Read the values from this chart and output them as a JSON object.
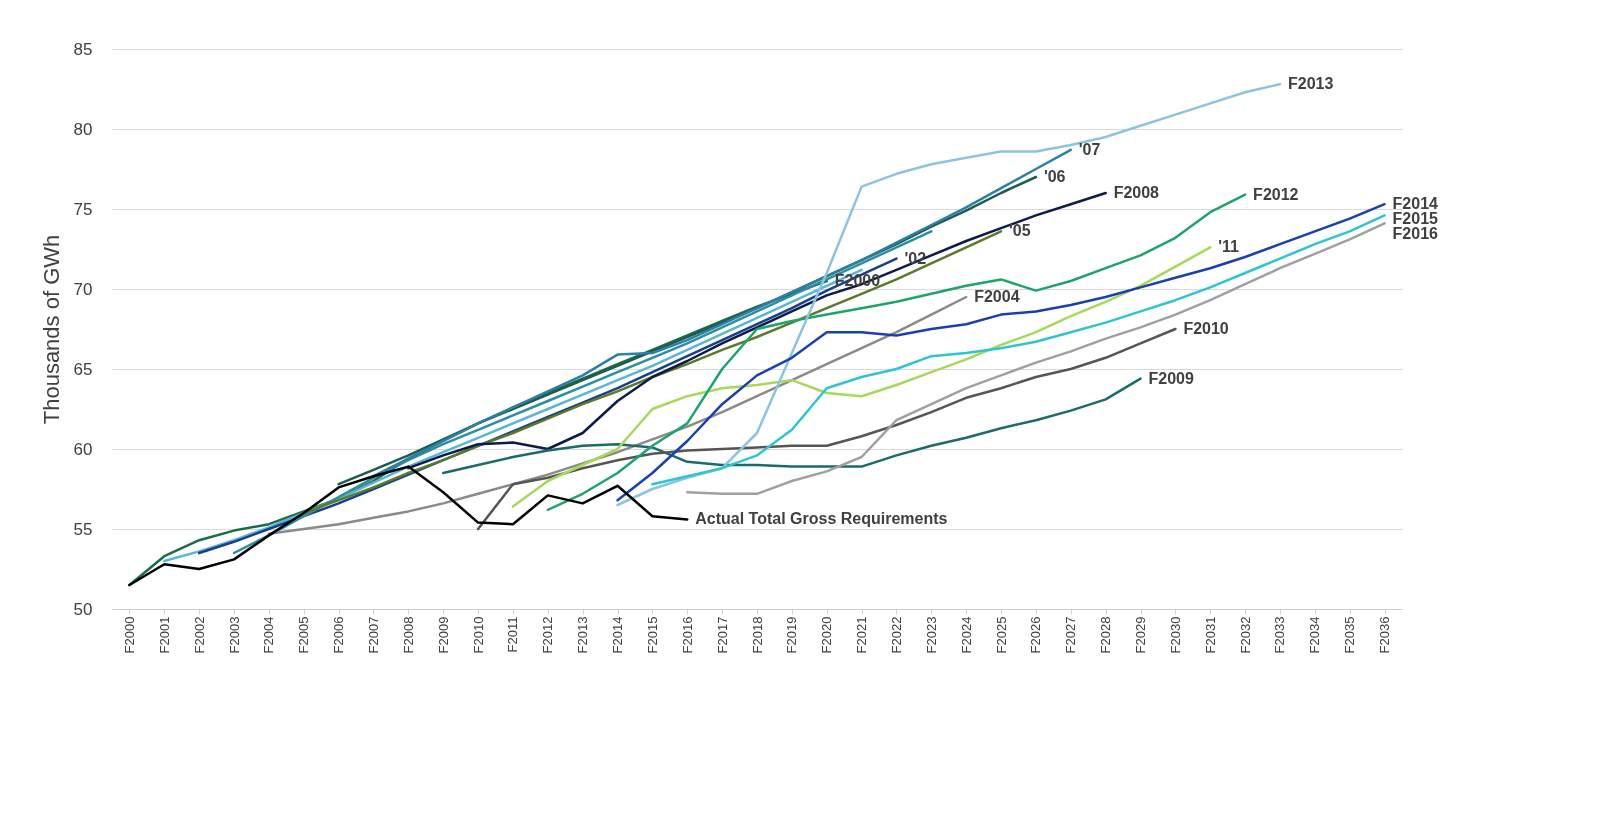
{
  "chart_data": {
    "type": "line",
    "ylabel": "Thousands of GWh",
    "categories": [
      "F2000",
      "F2001",
      "F2002",
      "F2003",
      "F2004",
      "F2005",
      "F2006",
      "F2007",
      "F2008",
      "F2009",
      "F2010",
      "F2011",
      "F2012",
      "F2013",
      "F2014",
      "F2015",
      "F2016",
      "F2017",
      "F2018",
      "F2019",
      "F2020",
      "F2021",
      "F2022",
      "F2023",
      "F2024",
      "F2025",
      "F2026",
      "F2027",
      "F2028",
      "F2029",
      "F2030",
      "F2031",
      "F2032",
      "F2033",
      "F2034",
      "F2035",
      "F2036"
    ],
    "ylim": [
      50,
      85
    ],
    "yticks": [
      50,
      55,
      60,
      65,
      70,
      75,
      80,
      85
    ],
    "grid": "y",
    "legend": false,
    "marker": "none",
    "line_style": "solid",
    "series": [
      {
        "name": "F2000",
        "color": "#1e6b4a",
        "values": [
          51.5,
          53.3,
          54.3,
          54.9,
          55.3,
          56.1,
          56.9,
          58.0,
          59.4,
          60.5,
          61.6,
          62.6,
          63.5,
          64.4,
          65.3,
          66.2,
          67.1,
          68.0,
          68.9,
          69.7,
          70.5,
          null,
          null,
          null,
          null,
          null,
          null,
          null,
          null,
          null,
          null,
          null,
          null,
          null,
          null,
          null,
          null
        ]
      },
      {
        "color": "#5bb5d5",
        "values": [
          null,
          53.0,
          53.6,
          54.3,
          55.1,
          56.0,
          56.9,
          57.9,
          58.9,
          59.8,
          60.7,
          61.6,
          62.5,
          63.4,
          64.3,
          65.2,
          66.2,
          67.2,
          68.2,
          69.2,
          70.2,
          71.2,
          null,
          null,
          null,
          null,
          null,
          null,
          null,
          null,
          null,
          null,
          null,
          null,
          null,
          null,
          null
        ]
      },
      {
        "name": "'02",
        "color": "#1a3f8a",
        "values": [
          null,
          null,
          53.5,
          54.2,
          55.0,
          55.8,
          56.6,
          57.5,
          58.4,
          59.3,
          60.2,
          61.1,
          62.0,
          62.9,
          63.8,
          64.8,
          65.8,
          66.8,
          67.8,
          68.8,
          69.9,
          70.9,
          71.9,
          null,
          null,
          null,
          null,
          null,
          null,
          null,
          null,
          null,
          null,
          null,
          null,
          null,
          null
        ]
      },
      {
        "color": "#2a8f9e",
        "values": [
          null,
          null,
          null,
          53.5,
          54.6,
          55.8,
          57.0,
          58.2,
          59.3,
          60.3,
          61.2,
          62.1,
          63.0,
          63.9,
          64.8,
          65.7,
          66.6,
          67.6,
          68.6,
          69.6,
          70.6,
          71.6,
          72.6,
          73.6,
          null,
          null,
          null,
          null,
          null,
          null,
          null,
          null,
          null,
          null,
          null,
          null,
          null
        ]
      },
      {
        "name": "F2004",
        "color": "#8a8a8a",
        "values": [
          null,
          null,
          null,
          null,
          54.7,
          55.0,
          55.3,
          55.7,
          56.1,
          56.6,
          57.2,
          57.8,
          58.4,
          59.1,
          59.8,
          60.6,
          61.4,
          62.3,
          63.3,
          64.3,
          65.3,
          66.3,
          67.3,
          68.4,
          69.5,
          null,
          null,
          null,
          null,
          null,
          null,
          null,
          null,
          null,
          null,
          null,
          null
        ]
      },
      {
        "name": "'05",
        "color": "#5a7a2a",
        "values": [
          null,
          null,
          null,
          null,
          null,
          56.0,
          56.8,
          57.6,
          58.5,
          59.3,
          60.2,
          61.0,
          61.9,
          62.8,
          63.6,
          64.5,
          65.3,
          66.2,
          67.0,
          67.9,
          68.8,
          69.7,
          70.6,
          71.6,
          72.6,
          73.6,
          null,
          null,
          null,
          null,
          null,
          null,
          null,
          null,
          null,
          null,
          null
        ]
      },
      {
        "name": "'06",
        "color": "#1f5c4a",
        "values": [
          null,
          null,
          null,
          null,
          null,
          null,
          57.8,
          58.7,
          59.6,
          60.6,
          61.6,
          62.5,
          63.4,
          64.3,
          65.2,
          66.1,
          67.0,
          67.9,
          68.8,
          69.8,
          70.8,
          71.8,
          72.8,
          73.9,
          74.9,
          76.0,
          77.0,
          null,
          null,
          null,
          null,
          null,
          null,
          null,
          null,
          null,
          null
        ]
      },
      {
        "name": "'07",
        "color": "#2e7fa8",
        "values": [
          null,
          null,
          null,
          null,
          null,
          null,
          null,
          58.3,
          59.4,
          60.5,
          61.6,
          62.6,
          63.6,
          64.6,
          65.9,
          66.0,
          66.8,
          67.8,
          68.8,
          69.8,
          70.8,
          71.8,
          72.9,
          74.0,
          75.1,
          76.3,
          77.5,
          78.7,
          null,
          null,
          null,
          null,
          null,
          null,
          null,
          null,
          null
        ]
      },
      {
        "name": "F2008",
        "color": "#0d1b4a",
        "values": [
          null,
          null,
          null,
          null,
          null,
          null,
          null,
          null,
          58.8,
          59.6,
          60.3,
          60.4,
          60.0,
          61.0,
          63.0,
          64.5,
          65.5,
          66.6,
          67.6,
          68.6,
          69.6,
          70.3,
          71.2,
          72.1,
          73.0,
          73.8,
          74.6,
          75.3,
          76.0,
          null,
          null,
          null,
          null,
          null,
          null,
          null,
          null
        ]
      },
      {
        "name": "F2009",
        "color": "#1b6b6b",
        "values": [
          null,
          null,
          null,
          null,
          null,
          null,
          null,
          null,
          null,
          58.5,
          59.0,
          59.5,
          59.9,
          60.2,
          60.3,
          60.1,
          59.2,
          59.0,
          59.0,
          58.9,
          58.9,
          58.9,
          59.6,
          60.2,
          60.7,
          61.3,
          61.8,
          62.4,
          63.1,
          64.4,
          null,
          null,
          null,
          null,
          null,
          null,
          null
        ]
      },
      {
        "name": "F2010",
        "color": "#555555",
        "values": [
          null,
          null,
          null,
          null,
          null,
          null,
          null,
          null,
          null,
          null,
          55.0,
          57.8,
          58.2,
          58.8,
          59.3,
          59.7,
          59.9,
          60.0,
          60.1,
          60.2,
          60.2,
          60.8,
          61.5,
          62.3,
          63.2,
          63.8,
          64.5,
          65.0,
          65.7,
          66.6,
          67.5,
          null,
          null,
          null,
          null,
          null,
          null
        ]
      },
      {
        "name": "'11",
        "color": "#a6d85a",
        "values": [
          null,
          null,
          null,
          null,
          null,
          null,
          null,
          null,
          null,
          null,
          null,
          56.4,
          58.0,
          59.0,
          60.0,
          62.5,
          63.3,
          63.8,
          64.0,
          64.3,
          63.5,
          63.3,
          64.0,
          64.8,
          65.6,
          66.5,
          67.3,
          68.3,
          69.2,
          70.2,
          71.4,
          72.6,
          null,
          null,
          null,
          null,
          null
        ]
      },
      {
        "name": "F2012",
        "color": "#1fa36b",
        "values": [
          null,
          null,
          null,
          null,
          null,
          null,
          null,
          null,
          null,
          null,
          null,
          null,
          56.2,
          57.2,
          58.5,
          60.2,
          61.6,
          65.0,
          67.5,
          68.0,
          68.4,
          68.8,
          69.2,
          69.7,
          70.2,
          70.6,
          69.9,
          70.5,
          71.3,
          72.1,
          73.2,
          74.8,
          75.9,
          null,
          null,
          null,
          null
        ]
      },
      {
        "name": "F2013",
        "color": "#8ec3e0",
        "values": [
          null,
          null,
          null,
          null,
          null,
          null,
          null,
          null,
          null,
          null,
          null,
          null,
          null,
          null,
          56.5,
          57.5,
          58.2,
          58.8,
          61.0,
          66.0,
          71.0,
          76.4,
          77.2,
          77.8,
          78.2,
          78.6,
          78.6,
          79.0,
          79.5,
          80.2,
          80.9,
          81.6,
          82.3,
          82.8,
          null,
          null,
          null
        ]
      },
      {
        "name": "F2014",
        "color": "#1a3fb0",
        "values": [
          null,
          null,
          null,
          null,
          null,
          null,
          null,
          null,
          null,
          null,
          null,
          null,
          null,
          null,
          56.8,
          58.5,
          60.5,
          62.8,
          64.6,
          65.7,
          67.3,
          67.3,
          67.1,
          67.5,
          67.8,
          68.4,
          68.6,
          69.0,
          69.5,
          70.1,
          70.7,
          71.3,
          72.0,
          72.8,
          73.6,
          74.4,
          75.3
        ]
      },
      {
        "name": "F2015",
        "color": "#2ec4d6",
        "values": [
          null,
          null,
          null,
          null,
          null,
          null,
          null,
          null,
          null,
          null,
          null,
          null,
          null,
          null,
          null,
          57.8,
          58.3,
          58.8,
          59.6,
          61.2,
          63.8,
          64.5,
          65.0,
          65.8,
          66.0,
          66.3,
          66.7,
          67.3,
          67.9,
          68.6,
          69.3,
          70.1,
          71.0,
          71.9,
          72.8,
          73.6,
          74.6
        ]
      },
      {
        "name": "F2016",
        "color": "#a0a0a0",
        "values": [
          null,
          null,
          null,
          null,
          null,
          null,
          null,
          null,
          null,
          null,
          null,
          null,
          null,
          null,
          null,
          null,
          57.3,
          57.2,
          57.2,
          58.0,
          58.6,
          59.5,
          61.8,
          62.8,
          63.8,
          64.6,
          65.4,
          66.1,
          66.9,
          67.6,
          68.4,
          69.3,
          70.3,
          71.3,
          72.2,
          73.1,
          74.1
        ]
      },
      {
        "name": "Actual Total Gross Requirements",
        "color": "#000000",
        "values": [
          51.5,
          52.8,
          52.5,
          53.1,
          54.6,
          56.0,
          57.6,
          58.3,
          58.9,
          57.3,
          55.4,
          55.3,
          57.1,
          56.6,
          57.7,
          55.8,
          55.6,
          null,
          null,
          null,
          null,
          null,
          null,
          null,
          null,
          null,
          null,
          null,
          null,
          null,
          null,
          null,
          null,
          null,
          null,
          null,
          null
        ]
      }
    ]
  }
}
